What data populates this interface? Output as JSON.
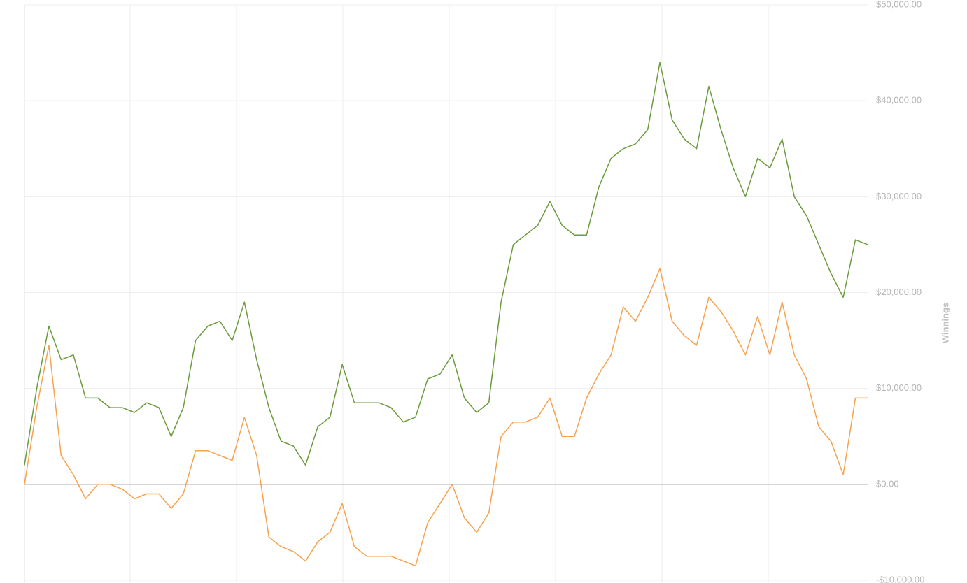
{
  "chart_data": {
    "type": "line",
    "y_axis_label": "Winnings",
    "categories": [
      null,
      null,
      null,
      null,
      null,
      null,
      null,
      null,
      null,
      null,
      null,
      null,
      null,
      null,
      null,
      null,
      null,
      null,
      null,
      null,
      null,
      null,
      null,
      null,
      null,
      null,
      null,
      null,
      null,
      null,
      null,
      null,
      null,
      null,
      null,
      null,
      null,
      null,
      null,
      null,
      null,
      null,
      null,
      null,
      null,
      null,
      null,
      null,
      null,
      null,
      null,
      null,
      null,
      null,
      null,
      null,
      null,
      null,
      null,
      null,
      null,
      null,
      null,
      null,
      null,
      null,
      null,
      null,
      null,
      null
    ],
    "series": [
      {
        "color": "#6b9b3c",
        "values": [
          2000,
          10000,
          16500,
          13000,
          13500,
          9000,
          9000,
          8000,
          8000,
          7500,
          8500,
          8000,
          5000,
          8000,
          15000,
          16500,
          17000,
          15000,
          19000,
          13000,
          8000,
          4500,
          4000,
          2000,
          6000,
          7000,
          12500,
          8500,
          8500,
          8500,
          8000,
          6500,
          7000,
          11000,
          11500,
          13500,
          9000,
          7500,
          8500,
          19000,
          25000,
          26000,
          27000,
          29500,
          27000,
          26000,
          26000,
          31000,
          34000,
          35000,
          35500,
          37000,
          44000,
          38000,
          36000,
          35000,
          41500,
          37000,
          33000,
          30000,
          34000,
          33000,
          36000,
          30000,
          28000,
          25000,
          22000,
          19500,
          25500,
          25000
        ]
      },
      {
        "color": "#f7a24e",
        "values": [
          0,
          8000,
          14500,
          3000,
          1000,
          -1500,
          0,
          0,
          -500,
          -1500,
          -1000,
          -1000,
          -2500,
          -1000,
          3500,
          3500,
          3000,
          2500,
          7000,
          3000,
          -5500,
          -6500,
          -7000,
          -8000,
          -6000,
          -5000,
          -2000,
          -6500,
          -7500,
          -7500,
          -7500,
          -8000,
          -8500,
          -4000,
          -2000,
          0,
          -3500,
          -5000,
          -3000,
          5000,
          6500,
          6500,
          7000,
          9000,
          5000,
          5000,
          9000,
          11500,
          13500,
          18500,
          17000,
          19500,
          22500,
          17000,
          15500,
          14500,
          19500,
          18000,
          16000,
          13500,
          17500,
          13500,
          19000,
          13500,
          11000,
          6000,
          4500,
          1000,
          9000,
          9000
        ]
      }
    ],
    "ylim": [
      -10000,
      50000
    ],
    "yticks": [
      {
        "value": -10000,
        "label": "-$10,000.00"
      },
      {
        "value": 0,
        "label": "$0.00"
      },
      {
        "value": 10000,
        "label": "$10,000.00"
      },
      {
        "value": 20000,
        "label": "$20,000.00"
      },
      {
        "value": 30000,
        "label": "$30,000.00"
      },
      {
        "value": 40000,
        "label": "$40,000.00"
      },
      {
        "value": 50000,
        "label": "$50,000.00"
      }
    ],
    "y_axis_side": "right",
    "grid": true
  }
}
